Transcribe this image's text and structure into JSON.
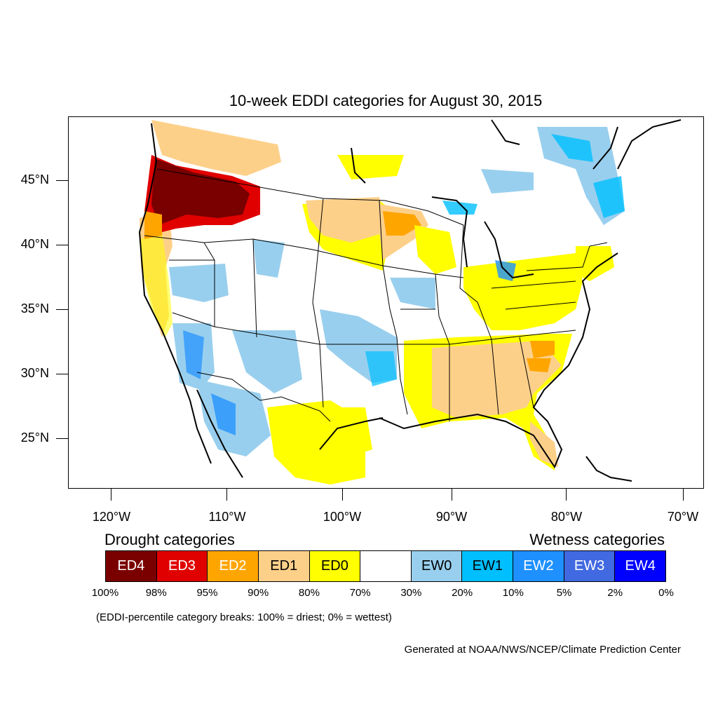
{
  "title": "10-week EDDI categories for August 30, 2015",
  "lat_labels": [
    "45°N",
    "40°N",
    "35°N",
    "30°N",
    "25°N"
  ],
  "lon_labels": [
    "120°W",
    "110°W",
    "100°W",
    "90°W",
    "80°W",
    "70°W"
  ],
  "legend": {
    "drought_heading": "Drought categories",
    "wetness_heading": "Wetness categories",
    "categories": [
      {
        "label": "ED4",
        "color": "#7a0000",
        "text_color": "#ffffff"
      },
      {
        "label": "ED3",
        "color": "#e00000",
        "text_color": "#ffffff"
      },
      {
        "label": "ED2",
        "color": "#ffa500",
        "text_color": "#ffffff"
      },
      {
        "label": "ED1",
        "color": "#fdd08a",
        "text_color": "#000000"
      },
      {
        "label": "ED0",
        "color": "#ffff00",
        "text_color": "#000000"
      },
      {
        "label": "",
        "color": "#ffffff",
        "text_color": "#000000"
      },
      {
        "label": "EW0",
        "color": "#99cfee",
        "text_color": "#000000"
      },
      {
        "label": "EW1",
        "color": "#00bfff",
        "text_color": "#000000"
      },
      {
        "label": "EW2",
        "color": "#1e90ff",
        "text_color": "#ffffff"
      },
      {
        "label": "EW3",
        "color": "#4169e1",
        "text_color": "#ffffff"
      },
      {
        "label": "EW4",
        "color": "#0000ff",
        "text_color": "#ffffff"
      }
    ],
    "breaks": [
      "100%",
      "98%",
      "95%",
      "90%",
      "80%",
      "70%",
      "30%",
      "20%",
      "10%",
      "5%",
      "2%",
      "0%"
    ]
  },
  "note": "(EDDI-percentile category breaks: 100% = driest; 0% = wettest)",
  "credit": "Generated at NOAA/NWS/NCEP/Climate Prediction Center"
}
